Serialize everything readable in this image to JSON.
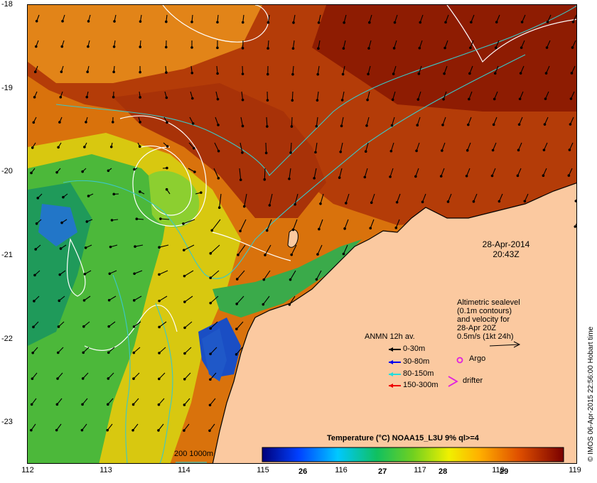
{
  "map": {
    "lat_labels": [
      "-18",
      "-19",
      "-20",
      "-21",
      "-22",
      "-23"
    ],
    "lon_labels": [
      "112",
      "113",
      "114",
      "115",
      "116",
      "117",
      "118",
      "119"
    ],
    "date": "28-Apr-2014",
    "time": "20:43Z",
    "altimetric_lines": [
      "Altimetric sealevel",
      "(0.1m contours)",
      "and velocity for",
      "28-Apr 20Z",
      "0.5m/s (1kt 24h)"
    ],
    "anmn_title": "ANMN 12h av.",
    "anmn_items": [
      {
        "label": "0-30m",
        "color": "#000000"
      },
      {
        "label": "30-80m",
        "color": "#0000ee"
      },
      {
        "label": "80-150m",
        "color": "#22dddd"
      },
      {
        "label": "150-300m",
        "color": "#ee0000"
      }
    ],
    "argo_label": "Argo",
    "drifter_label": "drifter",
    "isobath_label": "200  1000m",
    "colorbar_title": "Temperature (°C) NOAA15_L3U 9% ql>=4",
    "colorbar_ticks": [
      "26",
      "27",
      "28",
      "29"
    ],
    "credit": "© IMOS 06-Apr-2015 22:56:00 Hobart time",
    "colors": {
      "land": "#fbc9a0",
      "warm": "#b8400a",
      "hot": "#8a1a00",
      "mid": "#e07a10",
      "cool_green": "#2aa84a",
      "cold_blue": "#1550c8",
      "contour": "#ffffff",
      "isobath": "#3bc8c8"
    }
  }
}
